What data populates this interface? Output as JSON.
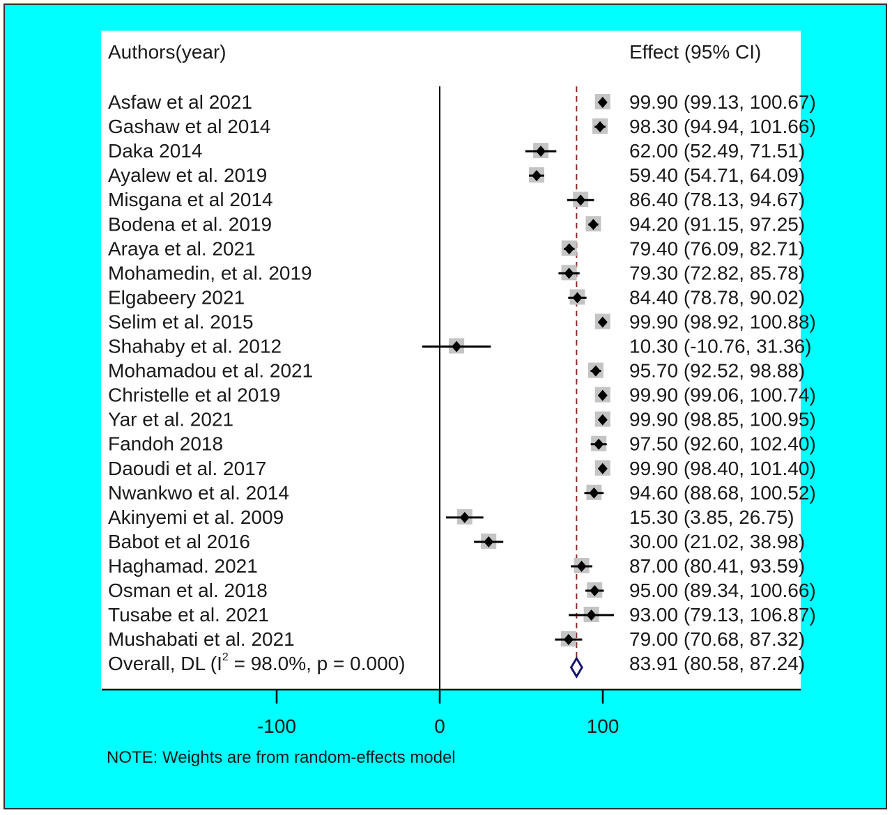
{
  "chart_data": {
    "type": "forest",
    "header_left": "Authors(year)",
    "header_right": "Effect (95% CI)",
    "studies": [
      {
        "label": "Asfaw et al 2021",
        "effect": 99.9,
        "lo": 99.13,
        "hi": 100.67,
        "ci_text": "99.90 (99.13, 100.67)"
      },
      {
        "label": "Gashaw et al 2014",
        "effect": 98.3,
        "lo": 94.94,
        "hi": 101.66,
        "ci_text": "98.30 (94.94, 101.66)"
      },
      {
        "label": "Daka 2014",
        "effect": 62.0,
        "lo": 52.49,
        "hi": 71.51,
        "ci_text": "62.00 (52.49, 71.51)"
      },
      {
        "label": "Ayalew et al.  2019",
        "effect": 59.4,
        "lo": 54.71,
        "hi": 64.09,
        "ci_text": "59.40 (54.71, 64.09)"
      },
      {
        "label": "Misgana et al  2014",
        "effect": 86.4,
        "lo": 78.13,
        "hi": 94.67,
        "ci_text": "86.40 (78.13, 94.67)"
      },
      {
        "label": "Bodena et al. 2019",
        "effect": 94.2,
        "lo": 91.15,
        "hi": 97.25,
        "ci_text": "94.20 (91.15, 97.25)"
      },
      {
        "label": "Araya et al. 2021",
        "effect": 79.4,
        "lo": 76.09,
        "hi": 82.71,
        "ci_text": "79.40 (76.09, 82.71)"
      },
      {
        "label": "Mohamedin, et al. 2019",
        "effect": 79.3,
        "lo": 72.82,
        "hi": 85.78,
        "ci_text": "79.30 (72.82, 85.78)"
      },
      {
        "label": "Elgabeery 2021",
        "effect": 84.4,
        "lo": 78.78,
        "hi": 90.02,
        "ci_text": "84.40 (78.78, 90.02)"
      },
      {
        "label": "Selim et al. 2015",
        "effect": 99.9,
        "lo": 98.92,
        "hi": 100.88,
        "ci_text": "99.90 (98.92, 100.88)"
      },
      {
        "label": "Shahaby et al. 2012",
        "effect": 10.3,
        "lo": -10.76,
        "hi": 31.36,
        "ci_text": "10.30 (-10.76, 31.36)"
      },
      {
        "label": "Mohamadou et al. 2021",
        "effect": 95.7,
        "lo": 92.52,
        "hi": 98.88,
        "ci_text": "95.70 (92.52, 98.88)"
      },
      {
        "label": "Christelle et al 2019",
        "effect": 99.9,
        "lo": 99.06,
        "hi": 100.74,
        "ci_text": "99.90 (99.06, 100.74)"
      },
      {
        "label": "Yar et al. 2021",
        "effect": 99.9,
        "lo": 98.85,
        "hi": 100.95,
        "ci_text": "99.90 (98.85, 100.95)"
      },
      {
        "label": "Fandoh 2018",
        "effect": 97.5,
        "lo": 92.6,
        "hi": 102.4,
        "ci_text": "97.50 (92.60, 102.40)"
      },
      {
        "label": "Daoudi et al. 2017",
        "effect": 99.9,
        "lo": 98.4,
        "hi": 101.4,
        "ci_text": "99.90 (98.40, 101.40)"
      },
      {
        "label": "Nwankwo et al. 2014",
        "effect": 94.6,
        "lo": 88.68,
        "hi": 100.52,
        "ci_text": "94.60 (88.68, 100.52)"
      },
      {
        "label": "Akinyemi et al. 2009",
        "effect": 15.3,
        "lo": 3.85,
        "hi": 26.75,
        "ci_text": "15.30 (3.85, 26.75)"
      },
      {
        "label": "Babot et al 2016",
        "effect": 30.0,
        "lo": 21.02,
        "hi": 38.98,
        "ci_text": "30.00 (21.02, 38.98)"
      },
      {
        "label": "Haghamad. 2021",
        "effect": 87.0,
        "lo": 80.41,
        "hi": 93.59,
        "ci_text": "87.00 (80.41, 93.59)"
      },
      {
        "label": "Osman et al. 2018",
        "effect": 95.0,
        "lo": 89.34,
        "hi": 100.66,
        "ci_text": "95.00 (89.34, 100.66)"
      },
      {
        "label": "Tusabe et al. 2021",
        "effect": 93.0,
        "lo": 79.13,
        "hi": 106.87,
        "ci_text": "93.00 (79.13, 106.87)"
      },
      {
        "label": "Mushabati et al. 2021",
        "effect": 79.0,
        "lo": 70.68,
        "hi": 87.32,
        "ci_text": "79.00 (70.68, 87.32)"
      }
    ],
    "overall": {
      "label_prefix": "Overall, DL (I",
      "label_sup": "2",
      "label_suffix": " = 98.0%, p = 0.000)",
      "effect": 83.91,
      "lo": 80.58,
      "hi": 87.24,
      "ci_text": "83.91 (80.58, 87.24)"
    },
    "x_ticks": [
      -100,
      0,
      100
    ],
    "x_tick_labels": [
      "-100",
      "0",
      "100"
    ],
    "reference_line": 0,
    "overall_line": 83.91,
    "note": "NOTE: Weights are from random-effects model",
    "colors": {
      "background": "#00ffff",
      "panel": "#ffffff",
      "weight_box": "#c4c4c4",
      "point": "#000000",
      "overall_line": "#8b2a2a",
      "overall_diamond": "#14146e"
    }
  }
}
